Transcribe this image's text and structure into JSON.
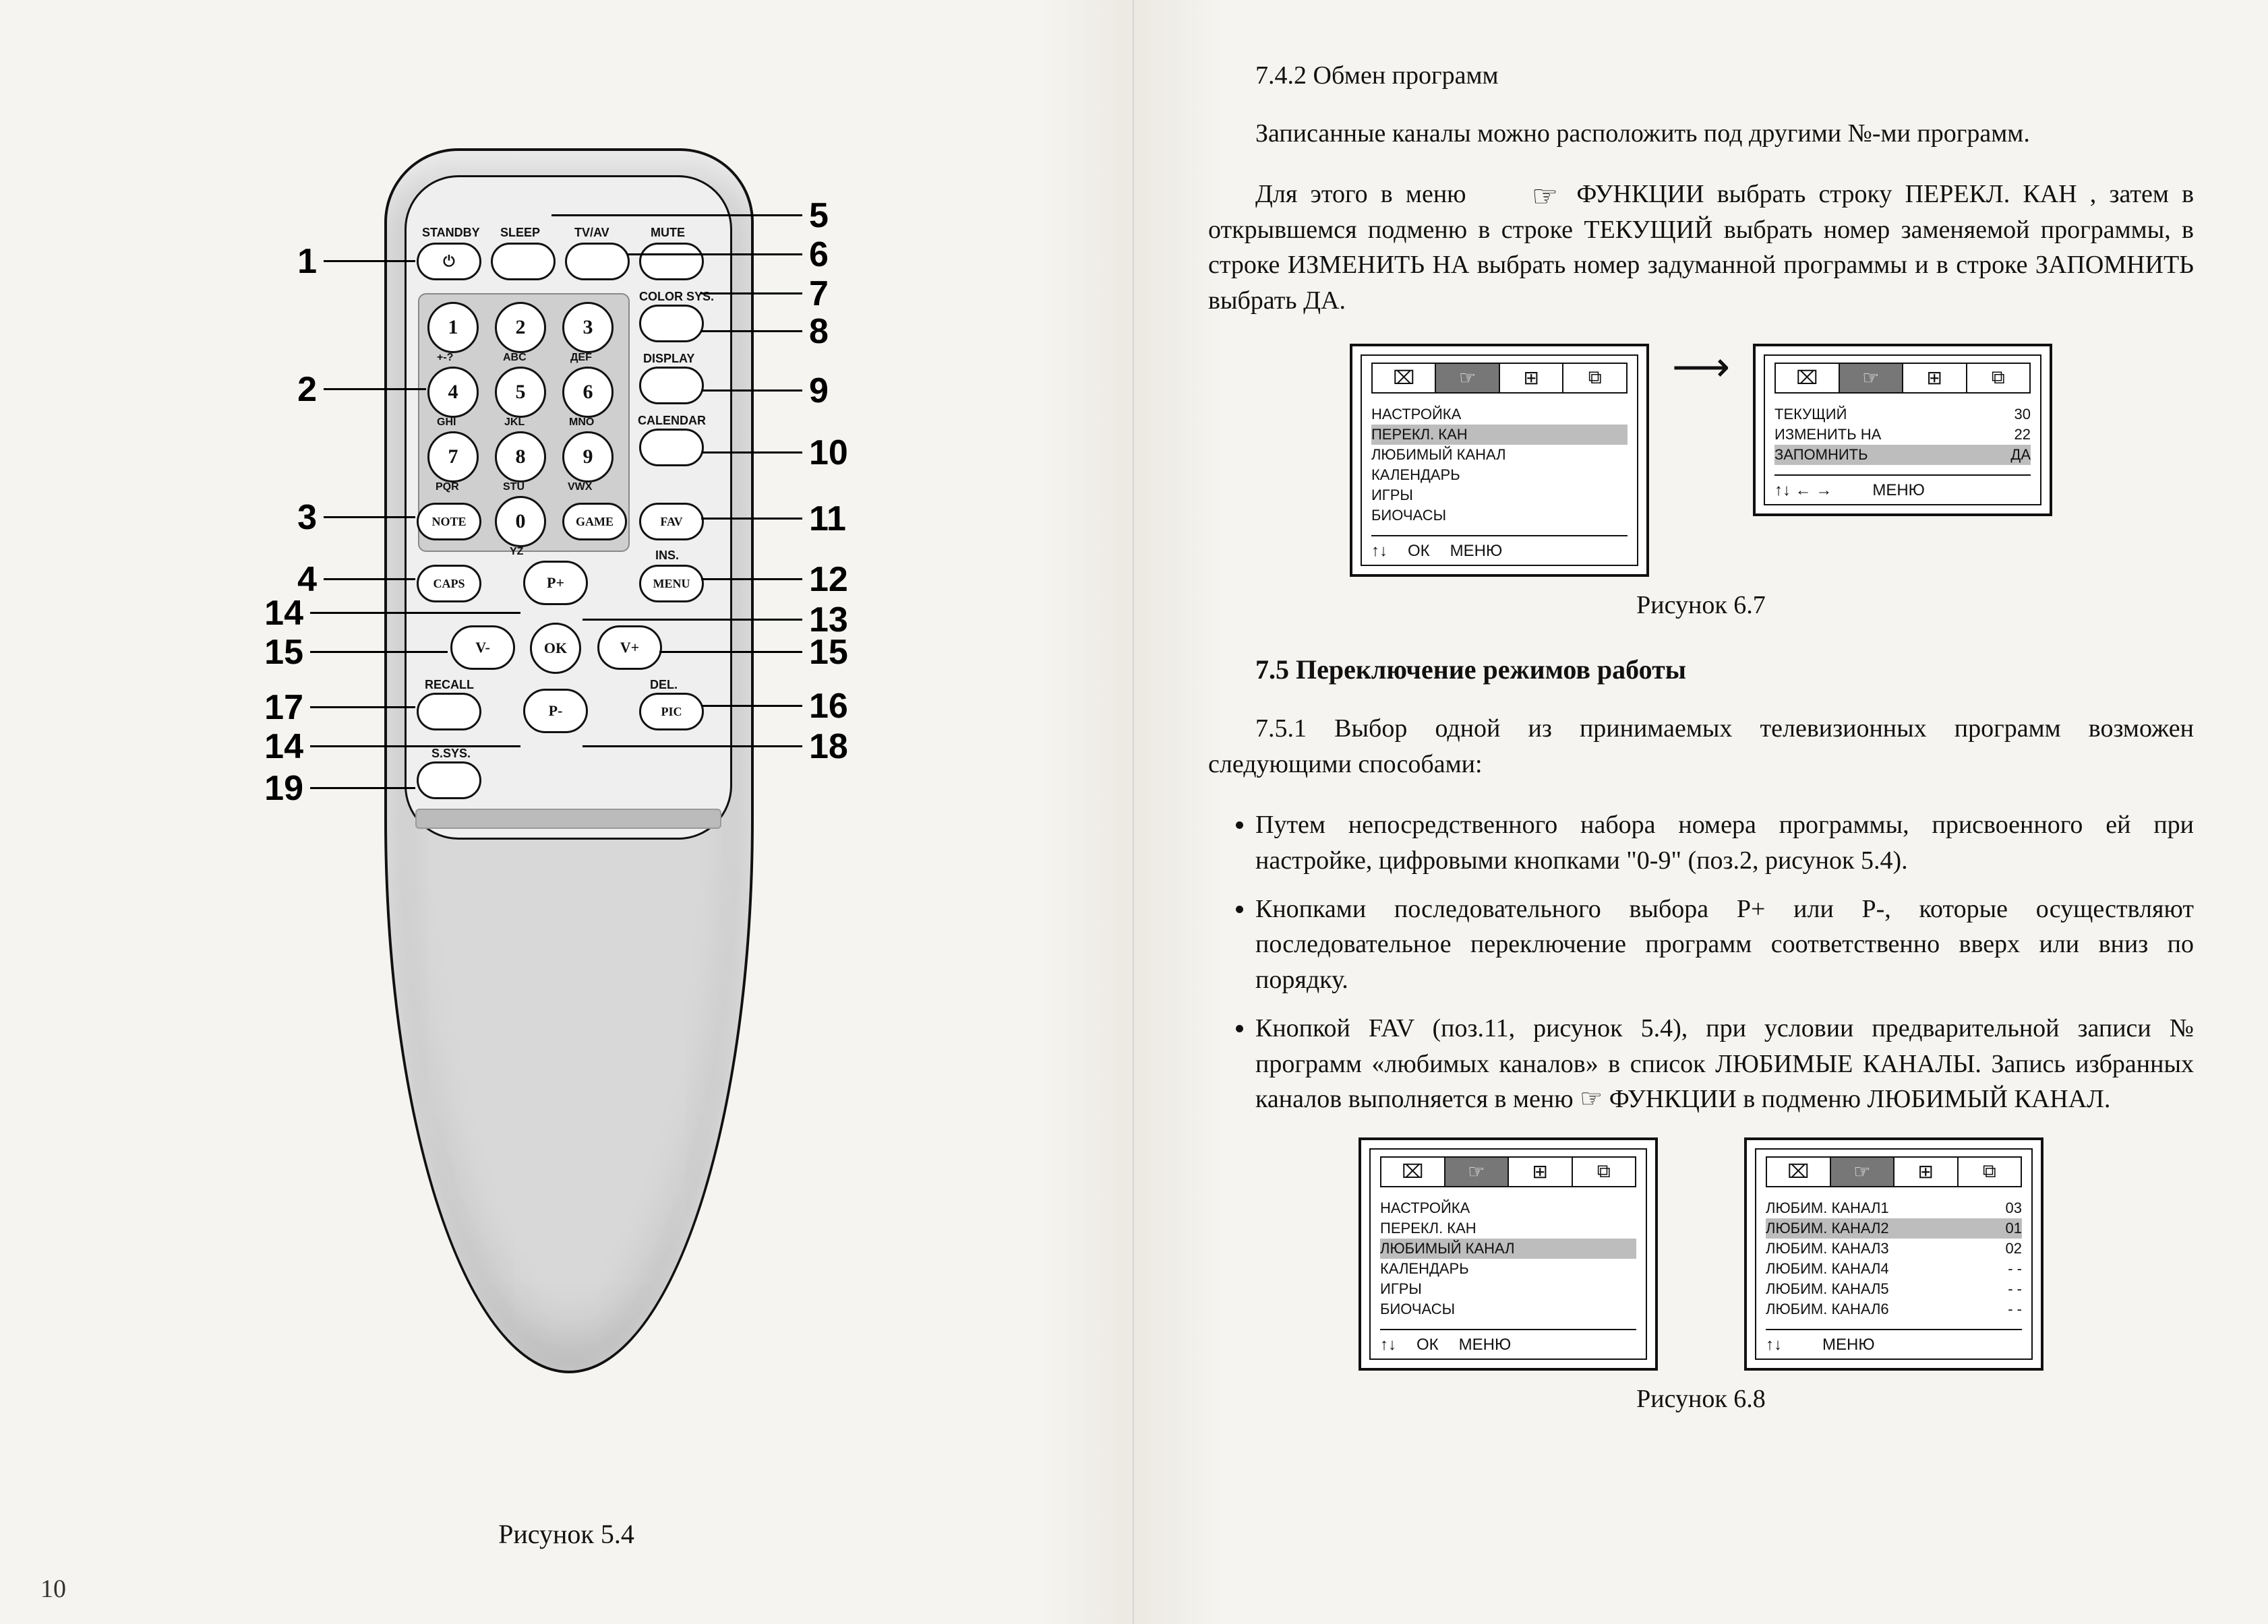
{
  "left_page": {
    "caption": "Рисунок 5.4",
    "page_number": "10",
    "labels": {
      "standby": "STANDBY",
      "sleep": "SLEEP",
      "tvav": "TV/AV",
      "mute": "MUTE",
      "colorsys": "COLOR SYS.",
      "display": "DISPLAY",
      "calendar": "CALENDAR",
      "note": "NOTE",
      "game": "GAME",
      "fav": "FAV",
      "caps": "CAPS",
      "ins": "INS.",
      "menu": "MENU",
      "recall": "RECALL",
      "del": "DEL.",
      "pic": "PIC",
      "ssys": "S.SYS.",
      "pplus": "P+",
      "pminus": "P-",
      "vminus": "V-",
      "vplus": "V+",
      "ok": "OK",
      "k1": "1",
      "k2": "2",
      "k3": "3",
      "k4": "4",
      "k5": "5",
      "k6": "6",
      "k7": "7",
      "k8": "8",
      "k9": "9",
      "k0": "0",
      "sub1": "+-?",
      "sub2": "ABC",
      "sub3": "ДЕF",
      "sub4": "GHI",
      "sub5": "JKL",
      "sub6": "MNO",
      "sub7": "PQR",
      "sub8": "STU",
      "sub9": "VWX",
      "sub0": "YZ",
      "power": "⏻"
    },
    "callouts_left": {
      "1": "1",
      "2": "2",
      "3": "3",
      "4": "4",
      "14a": "14",
      "15a": "15",
      "17": "17",
      "14b": "14",
      "19": "19"
    },
    "callouts_right": {
      "5": "5",
      "6": "6",
      "7": "7",
      "8": "8",
      "9": "9",
      "10": "10",
      "11": "11",
      "12": "12",
      "13": "13",
      "15b": "15",
      "16": "16",
      "18": "18"
    }
  },
  "right_page": {
    "h742": "7.4.2  Обмен программ",
    "p1": "Записанные каналы можно расположить под другими №-ми программ.",
    "p2a": "Для этого в меню",
    "p2b": "ФУНКЦИИ выбрать строку ПЕРЕКЛ. КАН , затем в открывшемся подменю в строке ТЕКУЩИЙ выбрать номер заменяемой программы, в строке ИЗМЕНИТЬ НА выбрать номер задуманной программы и в строке ЗАПОМНИТЬ выбрать ДА.",
    "fig67": {
      "caption": "Рисунок 6.7",
      "menuA": {
        "tabs": [
          "⌧",
          "☞",
          "⊞",
          "⧉"
        ],
        "items": [
          "НАСТРОЙКА",
          "ПЕРЕКЛ. КАН",
          "ЛЮБИМЫЙ КАНАЛ",
          "КАЛЕНДАРЬ",
          "ИГРЫ",
          "БИОЧАСЫ"
        ],
        "highlight_index": 1,
        "footer": [
          "↑↓",
          "ОК",
          "МЕНЮ"
        ]
      },
      "menuB": {
        "tabs": [
          "⌧",
          "☞",
          "⊞",
          "⧉"
        ],
        "rows": [
          {
            "k": "ТЕКУЩИЙ",
            "v": "30"
          },
          {
            "k": "ИЗМЕНИТЬ НА",
            "v": "22"
          },
          {
            "k": "ЗАПОМНИТЬ",
            "v": "ДА"
          }
        ],
        "highlight_index": 2,
        "footer": [
          "↑↓ ← →",
          "",
          "МЕНЮ"
        ]
      }
    },
    "h75": "7.5  Переключение режимов работы",
    "p751": "7.5.1  Выбор одной из принимаемых телевизионных программ возможен следующими способами:",
    "bullets": [
      "Путем непосредственного набора номера программы, присвоенного ей при настройке, цифровыми кнопками \"0-9\" (поз.2, рисунок 5.4).",
      "Кнопками последовательного выбора  P+ или P-, которые осуществляют последовательное переключение программ соответственно вверх или вниз по порядку.",
      "Кнопкой FAV (поз.11, рисунок 5.4), при условии предварительной записи № программ «любимых каналов» в список ЛЮБИМЫЕ КАНАЛЫ. Запись избранных каналов выполняется в меню   ☞   ФУНКЦИИ в подменю ЛЮБИМЫЙ КАНАЛ."
    ],
    "fig68": {
      "caption": "Рисунок 6.8",
      "menuA": {
        "tabs": [
          "⌧",
          "☞",
          "⊞",
          "⧉"
        ],
        "items": [
          "НАСТРОЙКА",
          "ПЕРЕКЛ. КАН",
          "ЛЮБИМЫЙ КАНАЛ",
          "КАЛЕНДАРЬ",
          "ИГРЫ",
          "БИОЧАСЫ"
        ],
        "highlight_index": 2,
        "footer": [
          "↑↓",
          "ОК",
          "МЕНЮ"
        ]
      },
      "menuB": {
        "tabs": [
          "⌧",
          "☞",
          "⊞",
          "⧉"
        ],
        "rows": [
          {
            "k": "ЛЮБИМ. КАНАЛ1",
            "v": "03"
          },
          {
            "k": "ЛЮБИМ. КАНАЛ2",
            "v": "01"
          },
          {
            "k": "ЛЮБИМ. КАНАЛ3",
            "v": "02"
          },
          {
            "k": "ЛЮБИМ. КАНАЛ4",
            "v": "- -"
          },
          {
            "k": "ЛЮБИМ. КАНАЛ5",
            "v": "- -"
          },
          {
            "k": "ЛЮБИМ. КАНАЛ6",
            "v": "- -"
          }
        ],
        "highlight_index": 1,
        "footer": [
          "↑↓",
          "",
          "МЕНЮ"
        ]
      }
    }
  },
  "colors": {
    "page_bg": "#f5f4f0",
    "ink": "#111111",
    "remote_body": "#d8d8d8",
    "remote_face": "#efefef",
    "highlight": "#bdbdbd"
  }
}
